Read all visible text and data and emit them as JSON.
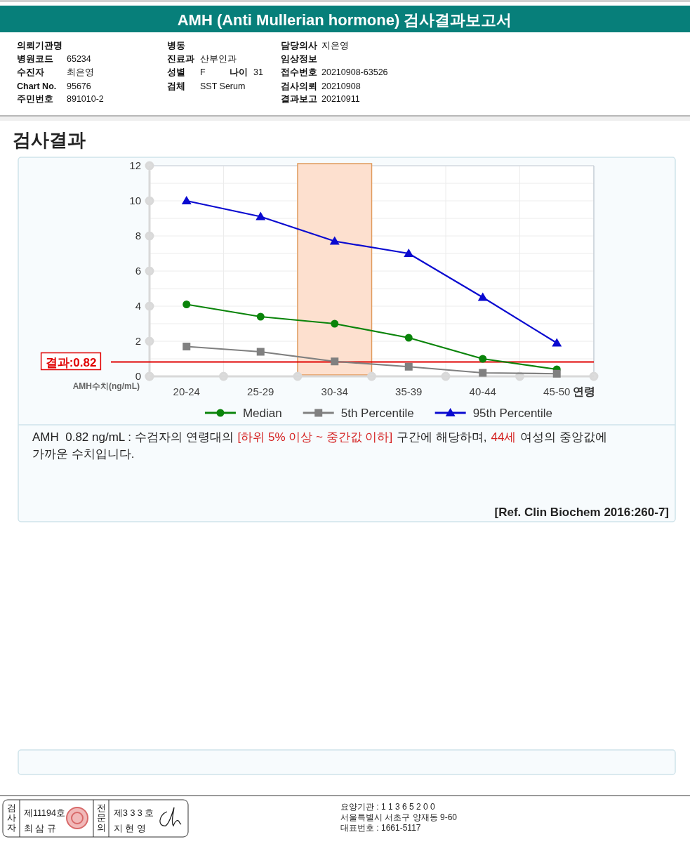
{
  "chart_data": {
    "type": "line",
    "title": "AMH (Anti Mullerian hormone) 검사결과보고서",
    "subtitle": "검사결과",
    "xlabel": "연령",
    "ylabel": "AMH수치(ng/mL)",
    "categories": [
      "20-24",
      "25-29",
      "30-34",
      "35-39",
      "40-44",
      "45-50"
    ],
    "series": [
      {
        "name": "Median",
        "color": "#0a840a",
        "marker": "circle",
        "values": [
          4.1,
          3.4,
          3.0,
          2.2,
          1.0,
          0.4
        ]
      },
      {
        "name": "5th Percentile",
        "color": "#808080",
        "marker": "square",
        "values": [
          1.7,
          1.4,
          0.85,
          0.55,
          0.2,
          0.15
        ]
      },
      {
        "name": "95th Percentile",
        "color": "#0a0ad0",
        "marker": "triangle",
        "values": [
          10.0,
          9.1,
          7.7,
          7.0,
          4.5,
          1.9
        ]
      }
    ],
    "ylim": [
      0,
      12
    ],
    "yticks": [
      0,
      {
        "value": 1,
        "label": null
      },
      2,
      {
        "value": 3,
        "label": null
      },
      4,
      {
        "value": 5,
        "label": null
      },
      6,
      {
        "value": 7,
        "label": null
      },
      8,
      {
        "value": 9,
        "label": null
      },
      10,
      {
        "value": 11,
        "label": null
      },
      12
    ],
    "grid": true,
    "legend": "bottom",
    "ref_lines": [
      {
        "axis": "y",
        "value": 0.82,
        "label": "결과:0.82",
        "color": "#e00000"
      }
    ],
    "bands": [
      {
        "axis": "x",
        "from": "30-34",
        "to": "30-34",
        "color": "#fde0cf"
      }
    ],
    "annotations": [
      "의뢰기관명",
      "병동",
      "담당의사",
      "지은영",
      "병원코드",
      "65234",
      "진료과",
      "산부인과",
      "임상정보",
      "수진자",
      "최은영",
      "성별",
      "F",
      "나이",
      "31",
      "접수번호",
      "20210908-63526",
      "Chart No.",
      "95676",
      "검체",
      "SST Serum",
      "검사의뢰",
      "20210908",
      "주민번호",
      "891010-2",
      "결과보고",
      "20210911",
      "AMH  0.82 ng/mL : 수검자의 연령대의",
      "[하위 5% 이상 ~ 중간값 이하]",
      "구간에 해당하며,",
      "44세",
      "여성의 중앙값에",
      "가까운 수치입니다.",
      "[Ref. Clin Biochem 2016:260-7]",
      "검사자",
      "제11194호",
      "최 삼 규",
      "전문의",
      "제3 3 3 호",
      "지 현 영",
      "요양기관 : 1 1 3 6 5 2 0 0",
      "서울특별시 서초구 양재동 9-60",
      "대표번호 : 1661-5117"
    ]
  }
}
